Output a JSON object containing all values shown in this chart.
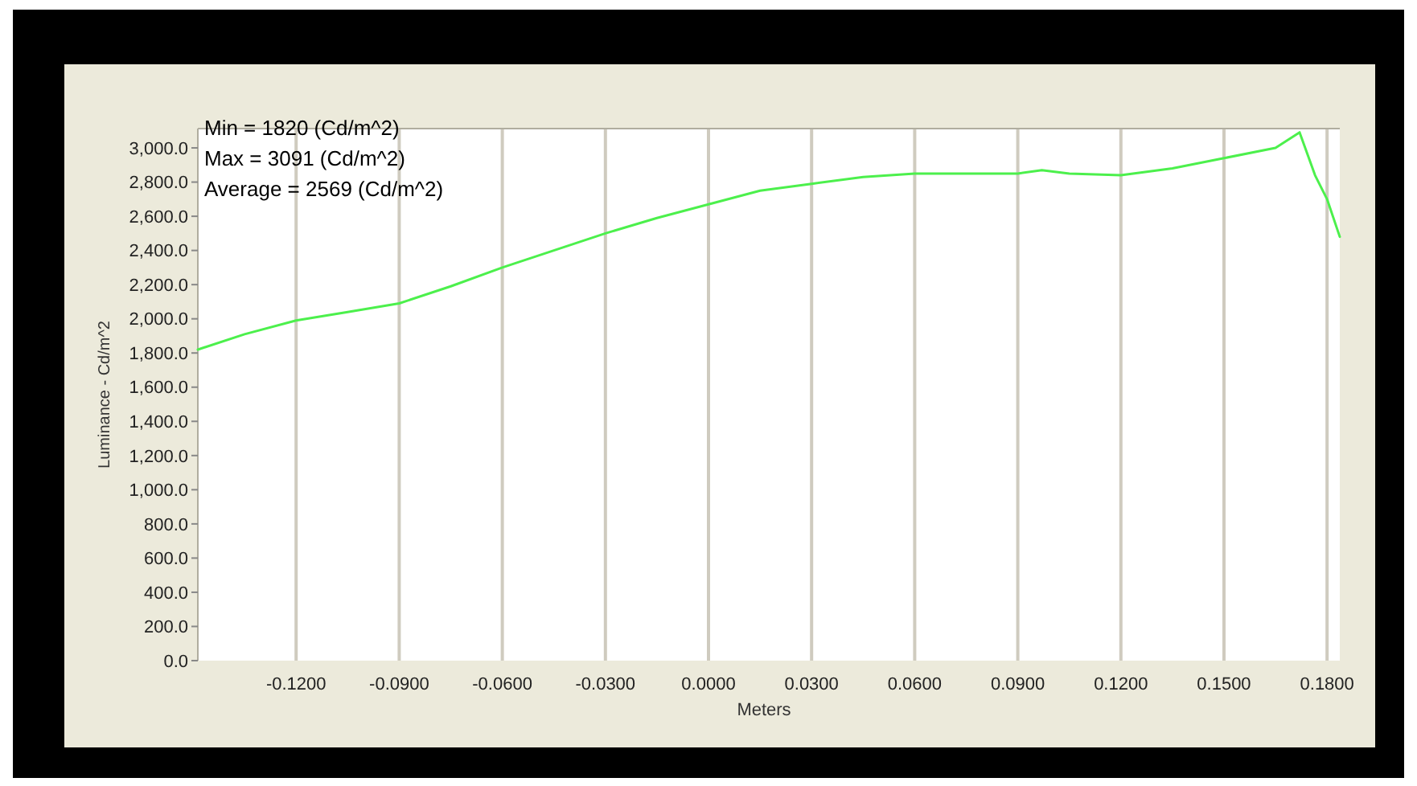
{
  "chart_data": {
    "type": "line",
    "xlabel": "Meters",
    "ylabel": "Luminance - Cd/m^2",
    "annotations": [
      "Min = 1820 (Cd/m^2)",
      "Max = 3091 (Cd/m^2)",
      "Average = 2569 (Cd/m^2)"
    ],
    "x": [
      -0.1486,
      -0.135,
      -0.12,
      -0.105,
      -0.09,
      -0.075,
      -0.06,
      -0.045,
      -0.03,
      -0.015,
      0,
      0.015,
      0.03,
      0.045,
      0.06,
      0.075,
      0.09,
      0.097,
      0.105,
      0.12,
      0.135,
      0.15,
      0.165,
      0.172,
      0.1765,
      0.18,
      0.1837
    ],
    "series": [
      {
        "color": "#4cf04c",
        "values": [
          1820,
          1910,
          1990,
          2040,
          2090,
          2190,
          2300,
          2400,
          2500,
          2590,
          2670,
          2750,
          2790,
          2830,
          2850,
          2850,
          2850,
          2870,
          2850,
          2840,
          2880,
          2940,
          3000,
          3091,
          2840,
          2700,
          2480
        ]
      }
    ],
    "xlim": [
      -0.1486,
      0.1837
    ],
    "ylim": [
      0,
      3113
    ],
    "xticks": [
      {
        "value": -0.12,
        "label": "-0.1200"
      },
      {
        "value": -0.09,
        "label": "-0.0900"
      },
      {
        "value": -0.06,
        "label": "-0.0600"
      },
      {
        "value": -0.03,
        "label": "-0.0300"
      },
      {
        "value": 0,
        "label": "0.0000"
      },
      {
        "value": 0.03,
        "label": "0.0300"
      },
      {
        "value": 0.06,
        "label": "0.0600"
      },
      {
        "value": 0.09,
        "label": "0.0900"
      },
      {
        "value": 0.12,
        "label": "0.1200"
      },
      {
        "value": 0.15,
        "label": "0.1500"
      },
      {
        "value": 0.18,
        "label": "0.1800"
      }
    ],
    "yticks": [
      {
        "value": 0,
        "label": "0.0"
      },
      {
        "value": 200,
        "label": "200.0"
      },
      {
        "value": 400,
        "label": "400.0"
      },
      {
        "value": 600,
        "label": "600.0"
      },
      {
        "value": 800,
        "label": "800.0"
      },
      {
        "value": 1000,
        "label": "1,000.0"
      },
      {
        "value": 1200,
        "label": "1,200.0"
      },
      {
        "value": 1400,
        "label": "1,400.0"
      },
      {
        "value": 1600,
        "label": "1,600.0"
      },
      {
        "value": 1800,
        "label": "1,800.0"
      },
      {
        "value": 2000,
        "label": "2,000.0"
      },
      {
        "value": 2200,
        "label": "2,200.0"
      },
      {
        "value": 2400,
        "label": "2,400.0"
      },
      {
        "value": 2600,
        "label": "2,600.0"
      },
      {
        "value": 2800,
        "label": "2,800.0"
      },
      {
        "value": 3000,
        "label": "3,000.0"
      }
    ],
    "grid": "x",
    "marker": "none",
    "line_style": "solid"
  }
}
